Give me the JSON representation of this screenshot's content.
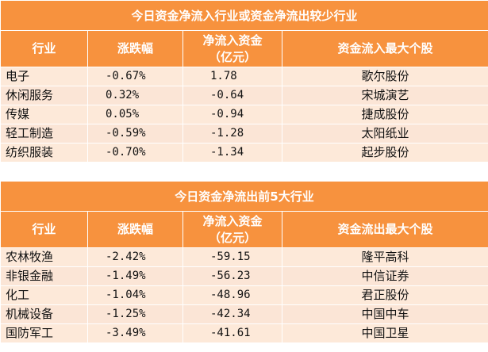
{
  "inflow_table": {
    "title": "今日资金净流入行业或资金净流出较少行业",
    "headers": [
      "行业",
      "涨跌幅",
      "净流入资金（亿元）",
      "资金流入最大个股"
    ],
    "header_net_line1": "净流入资金",
    "header_net_line2": "（亿元）",
    "rows": [
      {
        "industry": "电子",
        "change": "-0.67%",
        "net": "1.78",
        "stock": "歌尔股份"
      },
      {
        "industry": "休闲服务",
        "change": "0.32%",
        "net": "-0.64",
        "stock": "宋城演艺"
      },
      {
        "industry": "传媒",
        "change": "0.05%",
        "net": "-0.94",
        "stock": "捷成股份"
      },
      {
        "industry": "轻工制造",
        "change": "-0.59%",
        "net": "-1.28",
        "stock": "太阳纸业"
      },
      {
        "industry": "纺织服装",
        "change": "-0.70%",
        "net": "-1.34",
        "stock": "起步股份"
      }
    ]
  },
  "outflow_table": {
    "title": "今日资金净流出前5大行业",
    "headers": [
      "行业",
      "涨跌幅",
      "净流入资金（亿元）",
      "资金流出最大个股"
    ],
    "header_net_line1": "净流入资金",
    "header_net_line2": "（亿元）",
    "rows": [
      {
        "industry": "农林牧渔",
        "change": "-2.42%",
        "net": "-59.15",
        "stock": "隆平高科"
      },
      {
        "industry": "非银金融",
        "change": "-1.49%",
        "net": "-56.23",
        "stock": "中信证券"
      },
      {
        "industry": "化工",
        "change": "-1.04%",
        "net": "-48.96",
        "stock": "君正股份"
      },
      {
        "industry": "机械设备",
        "change": "-1.25%",
        "net": "-42.34",
        "stock": "中国中车"
      },
      {
        "industry": "国防军工",
        "change": "-3.49%",
        "net": "-41.61",
        "stock": "中国卫星"
      }
    ]
  },
  "colors": {
    "header_bg": "#f7923e",
    "row_bg": "#fde9d9"
  }
}
